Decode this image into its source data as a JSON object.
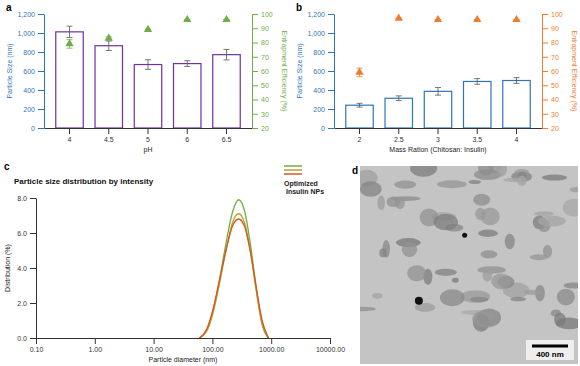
{
  "chart_data": [
    {
      "type": "bar",
      "panel": "a",
      "x_label": "pH",
      "y_label": "Particle Size (nm)",
      "y2_label": "Entrapment Efficiency (%)",
      "categories": [
        "4",
        "4.5",
        "5",
        "6",
        "6.5"
      ],
      "ylim": [
        0,
        1200
      ],
      "yticks": [
        0,
        200,
        400,
        600,
        800,
        {
          "value": 1000,
          "label": "1,000"
        },
        {
          "value": 1200,
          "label": "1,200"
        }
      ],
      "y2lim": [
        20,
        100
      ],
      "y2ticks": [
        20,
        30,
        40,
        50,
        60,
        70,
        80,
        90,
        100
      ],
      "series": [
        {
          "type": "bar",
          "color": "#7030a0",
          "values": [
            1012,
            866,
            668,
            678,
            772
          ],
          "errors": [
            60,
            50,
            50,
            30,
            55
          ]
        },
        {
          "type": "scatter",
          "axis": "y2",
          "marker": "triangle",
          "color": "#70ad47",
          "values": [
            79,
            83,
            89,
            96,
            96
          ],
          "errors": [
            3,
            1,
            0,
            0,
            0
          ]
        }
      ]
    },
    {
      "type": "bar",
      "panel": "b",
      "x_label": "Mass Ration (Chitosan: Insulin)",
      "y_label": "Particle Size (nm)",
      "y2_label": "Entrapment Efficiency (%)",
      "categories": [
        "2",
        "2.5",
        "3",
        "3.5",
        "4"
      ],
      "ylim": [
        0,
        1200
      ],
      "yticks": [
        0,
        200,
        400,
        600,
        800,
        {
          "value": 1000,
          "label": "1,000"
        },
        {
          "value": 1200,
          "label": "1,200"
        }
      ],
      "y2lim": [
        20,
        100
      ],
      "y2ticks": [
        20,
        30,
        40,
        50,
        60,
        70,
        80,
        90,
        100
      ],
      "series": [
        {
          "type": "bar",
          "color": "#2e75b6",
          "values": [
            240,
            313,
            386,
            490,
            500
          ],
          "errors": [
            20,
            25,
            40,
            30,
            30
          ]
        },
        {
          "type": "scatter",
          "axis": "y2",
          "marker": "triangle",
          "color": "#ed7d31",
          "values": [
            59,
            97,
            96,
            96,
            96
          ],
          "errors": [
            3,
            0,
            0,
            0,
            0
          ]
        }
      ]
    },
    {
      "type": "line",
      "panel": "c",
      "title": "Particle size distribution by intensity",
      "x_label": "Particle diameter (nm)",
      "y_label": "Distribution (%)",
      "legend_title": "Optimized Insulin NPs",
      "log": "x",
      "xlim": [
        0.1,
        10000
      ],
      "xticks": [
        {
          "value": 0.1,
          "label": "0.10"
        },
        {
          "value": 1,
          "label": "1.00"
        },
        {
          "value": 10,
          "label": "10.00"
        },
        {
          "value": 100,
          "label": "100.00"
        },
        {
          "value": 1000,
          "label": "1000.00"
        },
        {
          "value": 10000,
          "label": "10000.00"
        }
      ],
      "ylim": [
        0,
        8
      ],
      "yticks": [
        {
          "value": 0,
          "label": "0.0"
        },
        {
          "value": 2,
          "label": "2.0"
        },
        {
          "value": 4,
          "label": "4.0"
        },
        {
          "value": 6,
          "label": "6.0"
        },
        {
          "value": 8,
          "label": "8.0"
        }
      ],
      "x": [
        60,
        80,
        100,
        130,
        170,
        220,
        280,
        350,
        450,
        550,
        700,
        900
      ],
      "series": [
        {
          "color": "#70ad47",
          "values": [
            0,
            0.4,
            1.4,
            3.2,
            5.4,
            7.2,
            7.9,
            7.3,
            5.2,
            3.0,
            0.8,
            0
          ]
        },
        {
          "color": "#b5a22c",
          "values": [
            0,
            0.4,
            1.3,
            3.0,
            5.0,
            6.6,
            7.1,
            6.6,
            4.8,
            2.8,
            0.8,
            0
          ]
        },
        {
          "color": "#d9541e",
          "values": [
            0,
            0.5,
            1.5,
            3.2,
            5.0,
            6.4,
            6.8,
            6.4,
            4.8,
            3.0,
            1.0,
            0
          ]
        }
      ]
    },
    {
      "type": "image",
      "panel": "d",
      "scale_bar": "400 nm"
    }
  ]
}
